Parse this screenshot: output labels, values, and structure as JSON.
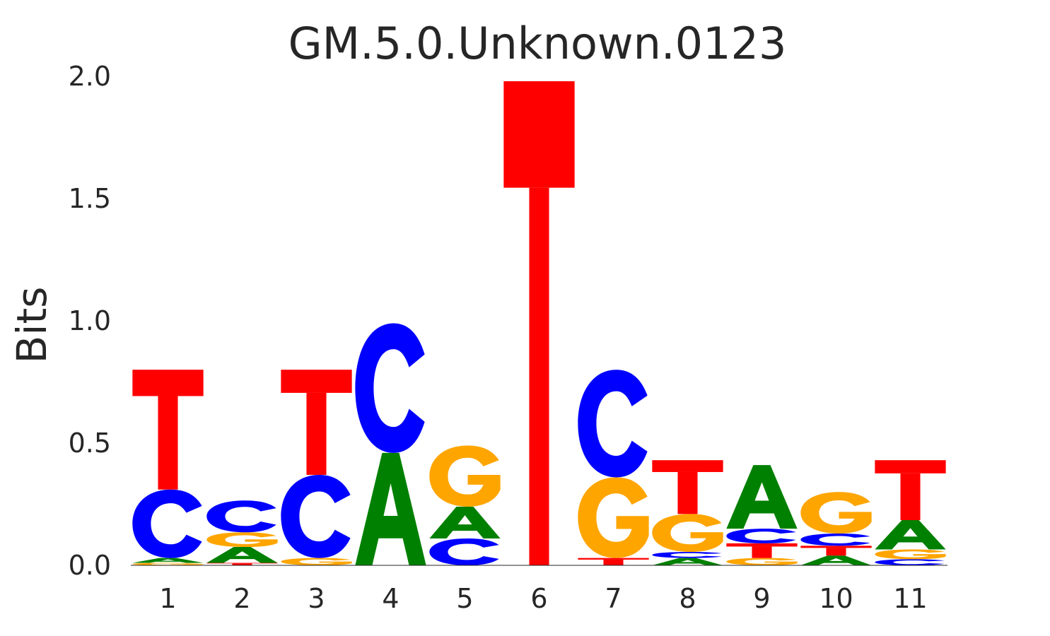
{
  "chart_data": {
    "type": "sequence-logo",
    "title": "GM.5.0.Unknown.0123",
    "xlabel": "",
    "ylabel": "Bits",
    "ylim": [
      0,
      2
    ],
    "yticks": [
      "0.0",
      "0.5",
      "1.0",
      "1.5",
      "2.0"
    ],
    "positions": [
      "1",
      "2",
      "3",
      "4",
      "5",
      "6",
      "7",
      "8",
      "9",
      "10",
      "11"
    ],
    "colors": {
      "A": "#008000",
      "C": "#0000ff",
      "G": "#ffa500",
      "T": "#ff0000"
    },
    "grid": false,
    "stacks": [
      [
        {
          "base": "G",
          "bits": 0.01
        },
        {
          "base": "A",
          "bits": 0.02
        },
        {
          "base": "C",
          "bits": 0.28
        },
        {
          "base": "T",
          "bits": 0.49
        }
      ],
      [
        {
          "base": "T",
          "bits": 0.01
        },
        {
          "base": "A",
          "bits": 0.065
        },
        {
          "base": "G",
          "bits": 0.06
        },
        {
          "base": "C",
          "bits": 0.13
        }
      ],
      [
        {
          "base": "G",
          "bits": 0.03
        },
        {
          "base": "C",
          "bits": 0.34
        },
        {
          "base": "T",
          "bits": 0.43
        }
      ],
      [
        {
          "base": "A",
          "bits": 0.46
        },
        {
          "base": "C",
          "bits": 0.53
        }
      ],
      [
        {
          "base": "C",
          "bits": 0.11
        },
        {
          "base": "A",
          "bits": 0.13
        },
        {
          "base": "G",
          "bits": 0.25
        }
      ],
      [
        {
          "base": "T",
          "bits": 1.98
        }
      ],
      [
        {
          "base": "T",
          "bits": 0.03
        },
        {
          "base": "G",
          "bits": 0.33
        },
        {
          "base": "C",
          "bits": 0.44
        }
      ],
      [
        {
          "base": "A",
          "bits": 0.03
        },
        {
          "base": "C",
          "bits": 0.025
        },
        {
          "base": "G",
          "bits": 0.155
        },
        {
          "base": "T",
          "bits": 0.22
        }
      ],
      [
        {
          "base": "G",
          "bits": 0.03
        },
        {
          "base": "T",
          "bits": 0.06
        },
        {
          "base": "C",
          "bits": 0.06
        },
        {
          "base": "A",
          "bits": 0.26
        }
      ],
      [
        {
          "base": "A",
          "bits": 0.04
        },
        {
          "base": "T",
          "bits": 0.04
        },
        {
          "base": "C",
          "bits": 0.05
        },
        {
          "base": "G",
          "bits": 0.17
        }
      ],
      [
        {
          "base": "C",
          "bits": 0.025
        },
        {
          "base": "G",
          "bits": 0.04
        },
        {
          "base": "A",
          "bits": 0.12
        },
        {
          "base": "T",
          "bits": 0.245
        }
      ]
    ]
  }
}
